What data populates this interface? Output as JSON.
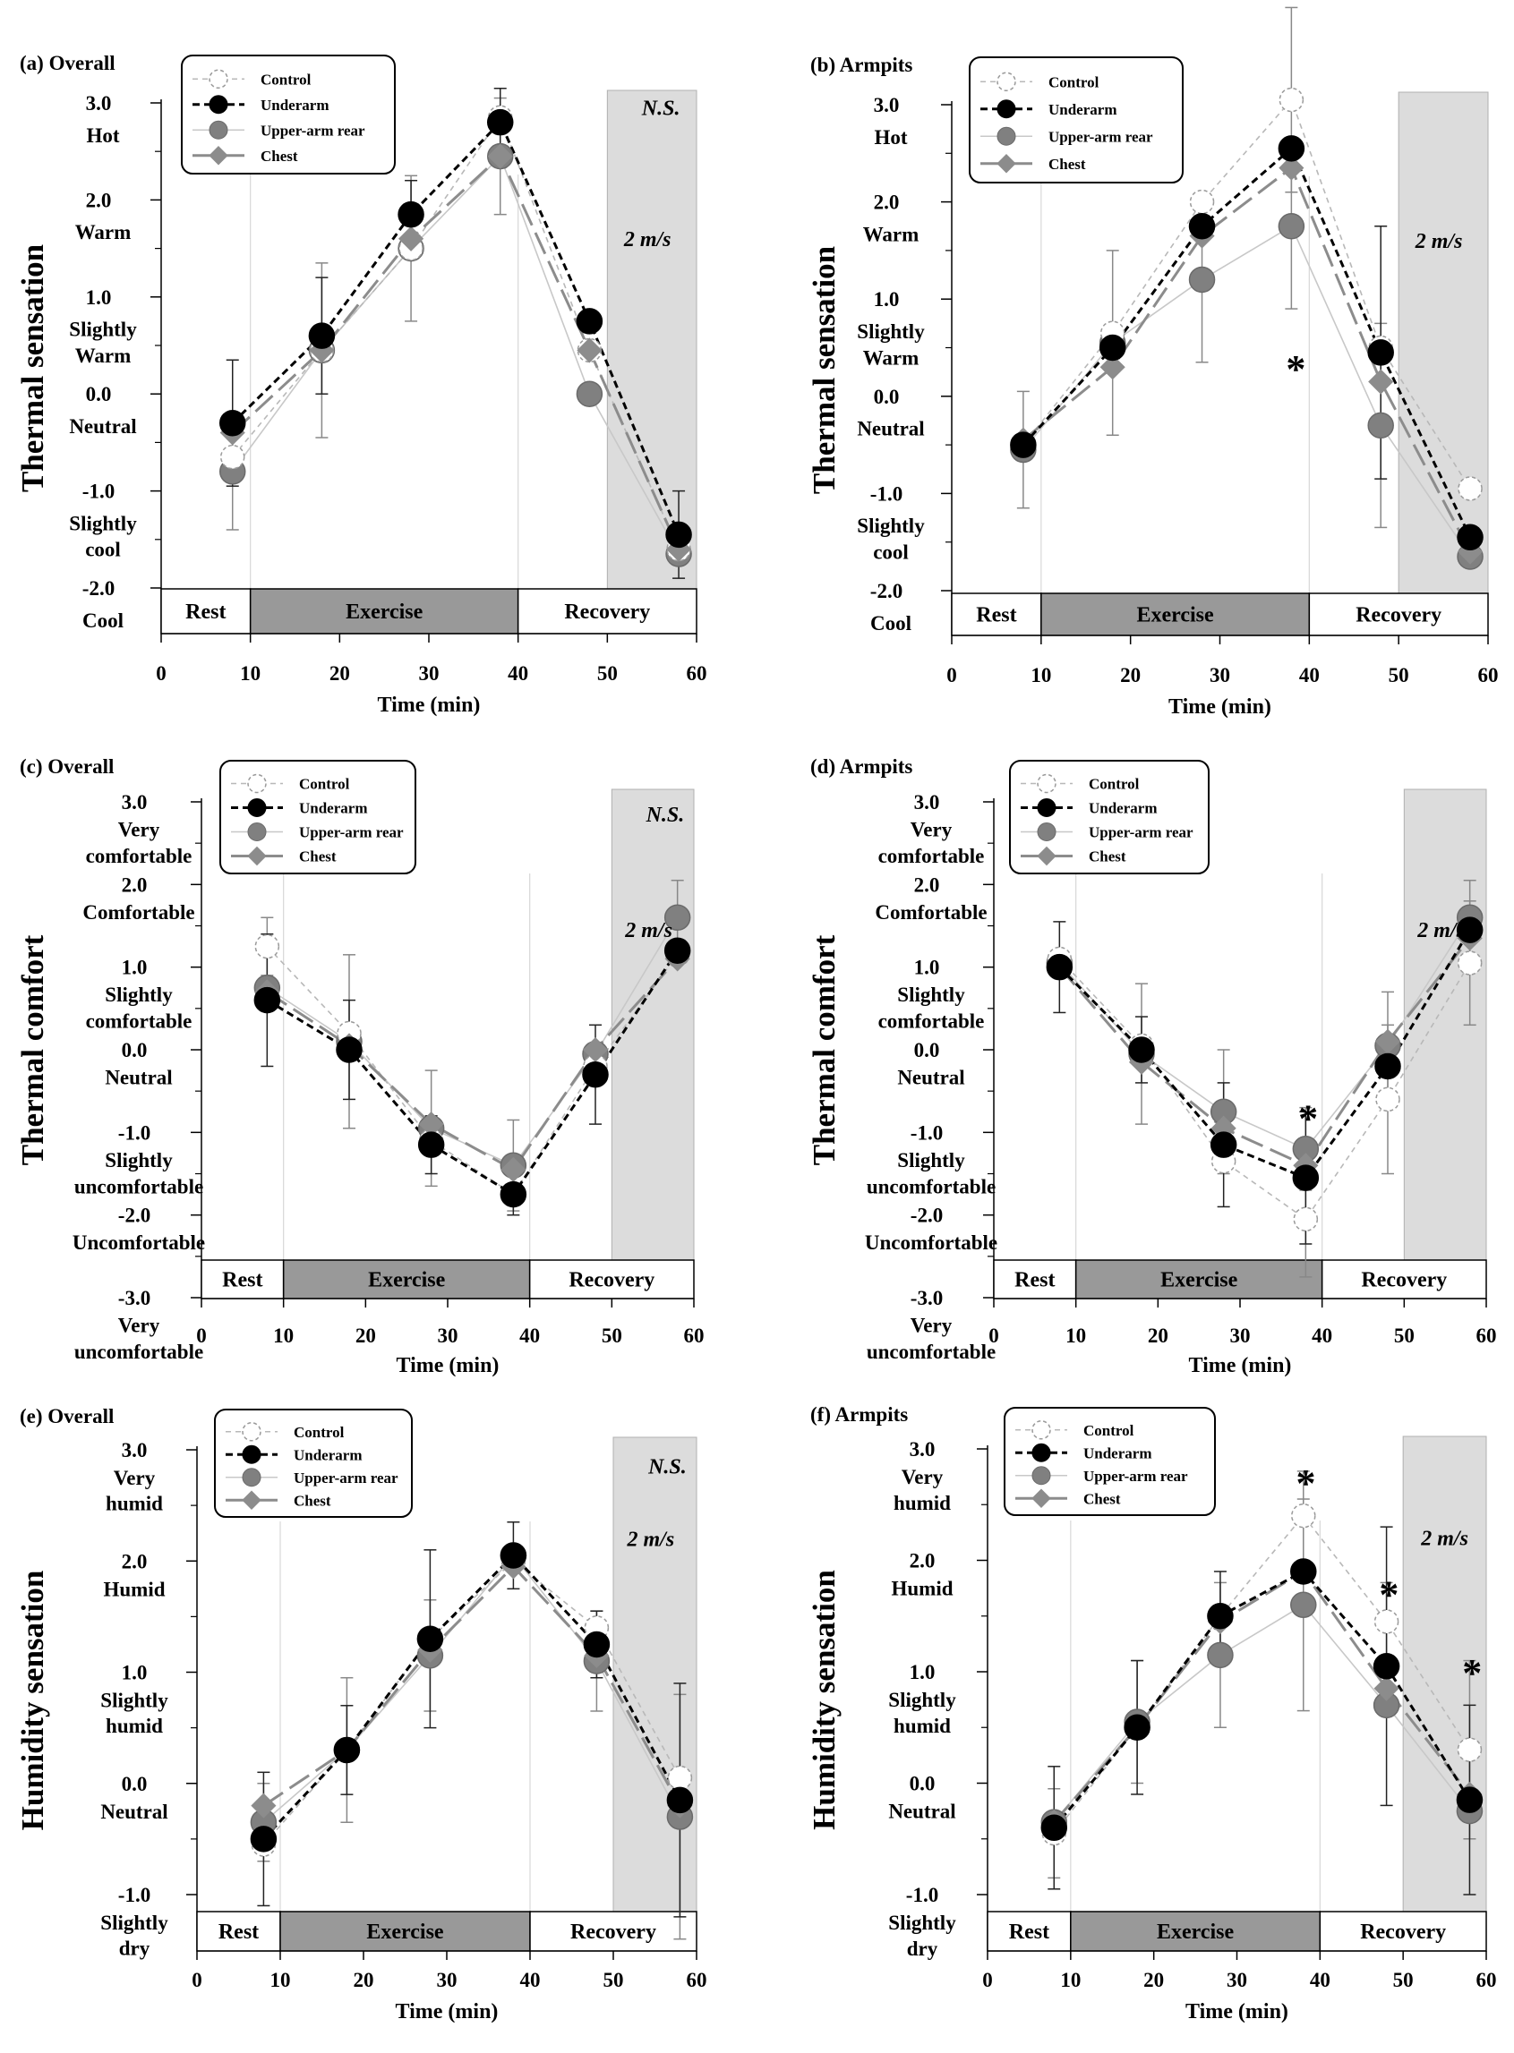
{
  "figure": {
    "background": "#ffffff"
  },
  "series_styles": [
    {
      "name": "Control",
      "marker": "open-circle",
      "fill": "#ffffff",
      "stroke": "#9a9a9a",
      "line": "#b8b8b8",
      "dash": "6,5",
      "width": 1.6
    },
    {
      "name": "Underarm",
      "marker": "filled-circle",
      "fill": "#000000",
      "stroke": "#000000",
      "line": "#000000",
      "dash": "8,5",
      "width": 3
    },
    {
      "name": "Upper-arm rear",
      "marker": "filled-circle",
      "fill": "#808080",
      "stroke": "#6a6a6a",
      "line": "#c8c8c8",
      "dash": "",
      "width": 1.6
    },
    {
      "name": "Chest",
      "marker": "diamond",
      "fill": "#8c8c8c",
      "stroke": "#8c8c8c",
      "line": "#8c8c8c",
      "dash": "26,9",
      "width": 3
    }
  ],
  "phases": {
    "rest": "Rest",
    "exercise": "Exercise",
    "recovery": "Recovery",
    "exercise_fill": "#999999",
    "shade_fill": "#dcdcdc"
  },
  "chart_data": [
    {
      "type": "line",
      "title": "(a) Overall",
      "ylabel": "Thermal sensation",
      "xlabel": "Time (min)",
      "xlim": [
        0,
        60
      ],
      "ylim": [
        -2,
        3
      ],
      "xticks": [
        0,
        10,
        20,
        30,
        40,
        50,
        60
      ],
      "xtick_labels": [
        "0",
        "10",
        "20",
        "30",
        "40",
        "50",
        "60"
      ],
      "yticks": [
        -2,
        -1,
        0,
        1,
        2,
        3
      ],
      "ytick_labels": [
        "-2.0",
        "-1.0",
        "0.0",
        "1.0",
        "2.0",
        "3.0"
      ],
      "level_labels": [
        {
          "y": 2.67,
          "text": "Hot"
        },
        {
          "y": 1.67,
          "text": "Warm"
        },
        {
          "y": 0.67,
          "text": "Slightly"
        },
        {
          "y": 0.4,
          "text": "Warm"
        },
        {
          "y": -0.33,
          "text": "Neutral"
        },
        {
          "y": -1.33,
          "text": "Slightly"
        },
        {
          "y": -1.6,
          "text": "cool"
        },
        {
          "y": -2.33,
          "text": "Cool"
        }
      ],
      "x": [
        8,
        18,
        28,
        38,
        48,
        58
      ],
      "series": [
        {
          "name": "Control",
          "values": [
            -0.65,
            0.45,
            1.5,
            2.85,
            0.45,
            -1.6
          ],
          "err": [
            0,
            0,
            0,
            0,
            0,
            0
          ]
        },
        {
          "name": "Underarm",
          "values": [
            -0.3,
            0.6,
            1.85,
            2.8,
            0.75,
            -1.45
          ],
          "err": [
            0.65,
            0.6,
            0.35,
            0.35,
            0,
            0.45
          ]
        },
        {
          "name": "Upper-arm rear",
          "values": [
            -0.8,
            0.45,
            1.5,
            2.45,
            0.0,
            -1.65
          ],
          "err": [
            0.6,
            0.9,
            0.75,
            0.6,
            0,
            0
          ]
        },
        {
          "name": "Chest",
          "values": [
            -0.4,
            0.45,
            1.6,
            2.45,
            0.45,
            -1.6
          ],
          "err": [
            0,
            0,
            0,
            0,
            0,
            0
          ]
        }
      ],
      "phase_bar": [
        -2.7,
        -2.47
      ],
      "shade_from": 50,
      "annotations": [
        {
          "text": "N.S.",
          "x": 56,
          "y": 2.95,
          "kind": "note"
        },
        {
          "text": "2 m/s",
          "x": 54.5,
          "y": 1.6,
          "kind": "note"
        }
      ],
      "legend": "top-left"
    },
    {
      "type": "line",
      "title": "(b) Armpits",
      "ylabel": "Thermal sensation",
      "xlabel": "Time (min)",
      "xlim": [
        0,
        60
      ],
      "ylim": [
        -2,
        3
      ],
      "xticks": [
        0,
        10,
        20,
        30,
        40,
        50,
        60
      ],
      "xtick_labels": [
        "0",
        "10",
        "20",
        "30",
        "40",
        "50",
        "60"
      ],
      "yticks": [
        -2,
        -1,
        0,
        1,
        2,
        3
      ],
      "ytick_labels": [
        "-2.0",
        "-1.0",
        "0.0",
        "1.0",
        "2.0",
        "3.0"
      ],
      "level_labels": [
        {
          "y": 2.67,
          "text": "Hot"
        },
        {
          "y": 1.67,
          "text": "Warm"
        },
        {
          "y": 0.67,
          "text": "Slightly"
        },
        {
          "y": 0.4,
          "text": "Warm"
        },
        {
          "y": -0.33,
          "text": "Neutral"
        },
        {
          "y": -1.33,
          "text": "Slightly"
        },
        {
          "y": -1.6,
          "text": "cool"
        },
        {
          "y": -2.33,
          "text": "Cool"
        }
      ],
      "x": [
        8,
        18,
        28,
        38,
        48,
        58
      ],
      "series": [
        {
          "name": "Control",
          "values": [
            -0.5,
            0.65,
            2.0,
            3.05,
            0.5,
            -0.95
          ],
          "err": [
            0,
            0,
            0,
            0.95,
            0,
            0
          ]
        },
        {
          "name": "Underarm",
          "values": [
            -0.5,
            0.5,
            1.75,
            2.55,
            0.45,
            -1.45
          ],
          "err": [
            0,
            0,
            0,
            0,
            1.3,
            0
          ]
        },
        {
          "name": "Upper-arm rear",
          "values": [
            -0.55,
            0.55,
            1.2,
            1.75,
            -0.3,
            -1.65
          ],
          "err": [
            0.6,
            0.95,
            0.85,
            0.85,
            1.05,
            0
          ]
        },
        {
          "name": "Chest",
          "values": [
            -0.45,
            0.3,
            1.65,
            2.35,
            0.15,
            -1.6
          ],
          "err": [
            0,
            0,
            0,
            0,
            0,
            0
          ]
        }
      ],
      "phase_bar": [
        -2.7,
        -2.47
      ],
      "shade_from": 50,
      "annotations": [
        {
          "text": "*",
          "x": 38.5,
          "y": 0.35,
          "kind": "star"
        },
        {
          "text": "2 m/s",
          "x": 54.5,
          "y": 1.6,
          "kind": "note"
        }
      ],
      "legend": "top-left"
    },
    {
      "type": "line",
      "title": "(c) Overall",
      "ylabel": "Thermal comfort",
      "xlabel": "Time (min)",
      "xlim": [
        0,
        60
      ],
      "ylim": [
        -3,
        3
      ],
      "xticks": [
        0,
        10,
        20,
        30,
        40,
        50,
        60
      ],
      "xtick_labels": [
        "0",
        "10",
        "20",
        "30",
        "40",
        "50",
        "60"
      ],
      "yticks": [
        -3,
        -2,
        -1,
        0,
        1,
        2,
        3
      ],
      "ytick_labels": [
        "-3.0",
        "-2.0",
        "-1.0",
        "0.0",
        "1.0",
        "2.0",
        "3.0"
      ],
      "level_labels": [
        {
          "y": 2.67,
          "text": "Very"
        },
        {
          "y": 2.35,
          "text": "comfortable"
        },
        {
          "y": 1.67,
          "text": "Comfortable"
        },
        {
          "y": 0.67,
          "text": "Slightly"
        },
        {
          "y": 0.35,
          "text": "comfortable"
        },
        {
          "y": -0.33,
          "text": "Neutral"
        },
        {
          "y": -1.33,
          "text": "Slightly"
        },
        {
          "y": -1.65,
          "text": "uncomfortable"
        },
        {
          "y": -2.33,
          "text": "Uncomfortable"
        },
        {
          "y": -3.33,
          "text": "Very"
        },
        {
          "y": -3.65,
          "text": "uncomfortable"
        }
      ],
      "x": [
        8,
        18,
        28,
        38,
        48,
        58
      ],
      "series": [
        {
          "name": "Control",
          "values": [
            1.25,
            0.2,
            -1.1,
            -1.75,
            -0.2,
            1.15
          ],
          "err": [
            0.35,
            0,
            0,
            0,
            0,
            0
          ]
        },
        {
          "name": "Underarm",
          "values": [
            0.6,
            0.0,
            -1.15,
            -1.75,
            -0.3,
            1.2
          ],
          "err": [
            0.8,
            0.6,
            0.35,
            0.25,
            0.6,
            0
          ]
        },
        {
          "name": "Upper-arm rear",
          "values": [
            0.75,
            0.1,
            -0.95,
            -1.4,
            -0.05,
            1.6
          ],
          "err": [
            0,
            1.05,
            0.7,
            0.55,
            0,
            0.45
          ]
        },
        {
          "name": "Chest",
          "values": [
            0.7,
            0.05,
            -0.9,
            -1.45,
            0.0,
            1.1
          ],
          "err": [
            0,
            0,
            0,
            0,
            0,
            0
          ]
        }
      ],
      "phase_bar": [
        -2.8,
        -2.45
      ],
      "shade_from": 50,
      "annotations": [
        {
          "text": "N.S.",
          "x": 56.5,
          "y": 2.85,
          "kind": "note"
        },
        {
          "text": "2 m/s",
          "x": 54.5,
          "y": 1.45,
          "kind": "note"
        }
      ],
      "legend": "top-left"
    },
    {
      "type": "line",
      "title": "(d) Armpits",
      "ylabel": "Thermal comfort",
      "xlabel": "Time (min)",
      "xlim": [
        0,
        60
      ],
      "ylim": [
        -3,
        3
      ],
      "xticks": [
        0,
        10,
        20,
        30,
        40,
        50,
        60
      ],
      "xtick_labels": [
        "0",
        "10",
        "20",
        "30",
        "40",
        "50",
        "60"
      ],
      "yticks": [
        -3,
        -2,
        -1,
        0,
        1,
        2,
        3
      ],
      "ytick_labels": [
        "-3.0",
        "-2.0",
        "-1.0",
        "0.0",
        "1.0",
        "2.0",
        "3.0"
      ],
      "level_labels": [
        {
          "y": 2.67,
          "text": "Very"
        },
        {
          "y": 2.35,
          "text": "comfortable"
        },
        {
          "y": 1.67,
          "text": "Comfortable"
        },
        {
          "y": 0.67,
          "text": "Slightly"
        },
        {
          "y": 0.35,
          "text": "comfortable"
        },
        {
          "y": -0.33,
          "text": "Neutral"
        },
        {
          "y": -1.33,
          "text": "Slightly"
        },
        {
          "y": -1.65,
          "text": "uncomfortable"
        },
        {
          "y": -2.33,
          "text": "Uncomfortable"
        },
        {
          "y": -3.33,
          "text": "Very"
        },
        {
          "y": -3.65,
          "text": "uncomfortable"
        }
      ],
      "x": [
        8,
        18,
        28,
        38,
        48,
        58
      ],
      "series": [
        {
          "name": "Control",
          "values": [
            1.1,
            0.05,
            -1.35,
            -2.05,
            -0.6,
            1.05
          ],
          "err": [
            0,
            0,
            0,
            0.7,
            0.9,
            0.75
          ]
        },
        {
          "name": "Underarm",
          "values": [
            1.0,
            0.0,
            -1.15,
            -1.55,
            -0.2,
            1.45
          ],
          "err": [
            0.55,
            0.4,
            0.75,
            0.8,
            0,
            0
          ]
        },
        {
          "name": "Upper-arm rear",
          "values": [
            1.05,
            -0.05,
            -0.75,
            -1.2,
            0.05,
            1.6
          ],
          "err": [
            0,
            0.85,
            0.75,
            0.5,
            0.65,
            0.45
          ]
        },
        {
          "name": "Chest",
          "values": [
            1.0,
            -0.15,
            -0.95,
            -1.4,
            0.1,
            1.35
          ],
          "err": [
            0,
            0,
            0,
            0,
            0,
            0
          ]
        }
      ],
      "phase_bar": [
        -2.8,
        -2.45
      ],
      "shade_from": 50,
      "annotations": [
        {
          "text": "*",
          "x": 38.3,
          "y": -0.75,
          "kind": "star"
        },
        {
          "text": "2 m/s",
          "x": 54.5,
          "y": 1.45,
          "kind": "note"
        }
      ],
      "legend": "top-left"
    },
    {
      "type": "line",
      "title": "(e) Overall",
      "ylabel": "Humidity sensation",
      "xlabel": "Time (min)",
      "xlim": [
        0,
        60
      ],
      "ylim": [
        -1,
        3
      ],
      "xticks": [
        0,
        10,
        20,
        30,
        40,
        50,
        60
      ],
      "xtick_labels": [
        "0",
        "10",
        "20",
        "30",
        "40",
        "50",
        "60"
      ],
      "yticks": [
        -1,
        0,
        1,
        2,
        3
      ],
      "ytick_labels": [
        "-1.0",
        "0.0",
        "1.0",
        "2.0",
        "3.0"
      ],
      "level_labels": [
        {
          "y": 2.75,
          "text": "Very"
        },
        {
          "y": 2.52,
          "text": "humid"
        },
        {
          "y": 1.75,
          "text": "Humid"
        },
        {
          "y": 0.75,
          "text": "Slightly"
        },
        {
          "y": 0.52,
          "text": "humid"
        },
        {
          "y": -0.25,
          "text": "Neutral"
        },
        {
          "y": -1.25,
          "text": "Slightly"
        },
        {
          "y": -1.48,
          "text": "dry"
        }
      ],
      "x": [
        8,
        18,
        28,
        38,
        48,
        58
      ],
      "series": [
        {
          "name": "Control",
          "values": [
            -0.55,
            0.3,
            1.3,
            2.0,
            1.4,
            0.05
          ],
          "err": [
            0,
            0,
            0,
            0,
            0,
            0
          ]
        },
        {
          "name": "Underarm",
          "values": [
            -0.5,
            0.3,
            1.3,
            2.05,
            1.25,
            -0.15
          ],
          "err": [
            0.6,
            0.4,
            0.8,
            0.3,
            0.3,
            1.05
          ]
        },
        {
          "name": "Upper-arm rear",
          "values": [
            -0.35,
            0.3,
            1.15,
            2.05,
            1.1,
            -0.3
          ],
          "err": [
            0.35,
            0.65,
            0.5,
            0,
            0.45,
            1.1
          ]
        },
        {
          "name": "Chest",
          "values": [
            -0.2,
            0.3,
            1.2,
            1.95,
            1.15,
            -0.2
          ],
          "err": [
            0,
            0,
            0,
            0,
            0,
            0
          ]
        }
      ],
      "phase_bar": [
        -1.55,
        -1.2
      ],
      "shade_from": 50,
      "annotations": [
        {
          "text": "N.S.",
          "x": 56.5,
          "y": 2.85,
          "kind": "note"
        },
        {
          "text": "2 m/s",
          "x": 54.5,
          "y": 2.2,
          "kind": "note"
        }
      ],
      "legend": "top-left"
    },
    {
      "type": "line",
      "title": "(f) Armpits",
      "ylabel": "Humidity sensation",
      "xlabel": "Time (min)",
      "xlim": [
        0,
        60
      ],
      "ylim": [
        -1,
        3
      ],
      "xticks": [
        0,
        10,
        20,
        30,
        40,
        50,
        60
      ],
      "xtick_labels": [
        "0",
        "10",
        "20",
        "30",
        "40",
        "50",
        "60"
      ],
      "yticks": [
        -1,
        0,
        1,
        2,
        3
      ],
      "ytick_labels": [
        "-1.0",
        "0.0",
        "1.0",
        "2.0",
        "3.0"
      ],
      "level_labels": [
        {
          "y": 2.75,
          "text": "Very"
        },
        {
          "y": 2.52,
          "text": "humid"
        },
        {
          "y": 1.75,
          "text": "Humid"
        },
        {
          "y": 0.75,
          "text": "Slightly"
        },
        {
          "y": 0.52,
          "text": "humid"
        },
        {
          "y": -0.25,
          "text": "Neutral"
        },
        {
          "y": -1.25,
          "text": "Slightly"
        },
        {
          "y": -1.48,
          "text": "dry"
        }
      ],
      "x": [
        8,
        18,
        28,
        38,
        48,
        58
      ],
      "series": [
        {
          "name": "Control",
          "values": [
            -0.45,
            0.5,
            1.5,
            2.4,
            1.45,
            0.3
          ],
          "err": [
            0.4,
            0,
            0,
            0.4,
            0.35,
            0.8
          ]
        },
        {
          "name": "Underarm",
          "values": [
            -0.4,
            0.5,
            1.5,
            1.9,
            1.05,
            -0.15
          ],
          "err": [
            0.55,
            0.6,
            0.4,
            0,
            1.25,
            0.85
          ]
        },
        {
          "name": "Upper-arm rear",
          "values": [
            -0.35,
            0.55,
            1.15,
            1.6,
            0.7,
            -0.25
          ],
          "err": [
            0,
            0.55,
            0.65,
            0.95,
            0,
            0
          ]
        },
        {
          "name": "Chest",
          "values": [
            -0.35,
            0.5,
            1.45,
            1.9,
            0.85,
            -0.1
          ],
          "err": [
            0,
            0,
            0,
            0,
            0,
            0
          ]
        }
      ],
      "phase_bar": [
        -1.55,
        -1.2
      ],
      "shade_from": 50,
      "annotations": [
        {
          "text": "*",
          "x": 38.3,
          "y": 2.75,
          "kind": "star"
        },
        {
          "text": "*",
          "x": 48.3,
          "y": 1.75,
          "kind": "star"
        },
        {
          "text": "*",
          "x": 58.3,
          "y": 1.05,
          "kind": "star"
        },
        {
          "text": "2 m/s",
          "x": 55,
          "y": 2.2,
          "kind": "note"
        }
      ],
      "legend": "top-left"
    }
  ]
}
